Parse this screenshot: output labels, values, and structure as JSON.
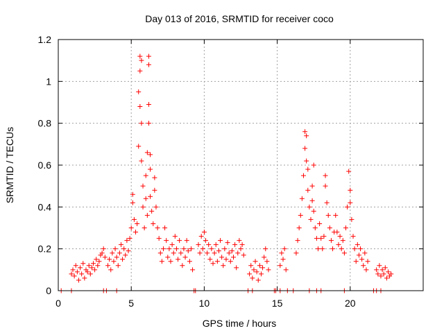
{
  "chart_data": {
    "type": "scatter",
    "title": "Day 013 of 2016, SRMTID for receiver coco",
    "xlabel": "GPS time / hours",
    "ylabel": "SRMTID / TECUs",
    "xlim": [
      0,
      25
    ],
    "ylim": [
      0,
      1.2
    ],
    "grid": true,
    "x_ticks": [
      0,
      5,
      10,
      15,
      20
    ],
    "x_tick_labels": [
      "0",
      "5",
      "10",
      "15",
      "20"
    ],
    "y_ticks": [
      0,
      0.2,
      0.4,
      0.6,
      0.8,
      1,
      1.2
    ],
    "y_tick_labels": [
      "0",
      "0.2",
      "0.4",
      "0.6",
      "0.8",
      "1",
      "1.2"
    ],
    "marker": "+",
    "colors": {
      "series": "#ff0000",
      "grid": "#a0a0a0",
      "axis": "#000000"
    },
    "series": [
      {
        "name": "SRMTID",
        "points": [
          [
            0.2,
            0
          ],
          [
            0.9,
            0
          ],
          [
            3.1,
            0
          ],
          [
            3.3,
            0
          ],
          [
            4.0,
            0
          ],
          [
            9.3,
            0
          ],
          [
            9.4,
            0
          ],
          [
            13.0,
            0
          ],
          [
            13.3,
            0
          ],
          [
            14.8,
            0
          ],
          [
            14.9,
            0
          ],
          [
            15.2,
            0
          ],
          [
            15.7,
            0
          ],
          [
            16.1,
            0
          ],
          [
            17.2,
            0
          ],
          [
            17.7,
            0
          ],
          [
            18.0,
            0
          ],
          [
            19.6,
            0
          ],
          [
            21.6,
            0
          ],
          [
            21.8,
            0
          ],
          [
            22.1,
            0
          ],
          [
            0.9,
            0.08
          ],
          [
            1.0,
            0.1
          ],
          [
            1.1,
            0.07
          ],
          [
            1.2,
            0.12
          ],
          [
            1.3,
            0.09
          ],
          [
            1.4,
            0.05
          ],
          [
            1.5,
            0.11
          ],
          [
            1.6,
            0.08
          ],
          [
            1.7,
            0.13
          ],
          [
            1.8,
            0.06
          ],
          [
            1.9,
            0.1
          ],
          [
            2.0,
            0.09
          ],
          [
            2.1,
            0.12
          ],
          [
            2.2,
            0.08
          ],
          [
            2.3,
            0.11
          ],
          [
            2.4,
            0.13
          ],
          [
            2.5,
            0.1
          ],
          [
            2.6,
            0.15
          ],
          [
            2.7,
            0.12
          ],
          [
            2.8,
            0.14
          ],
          [
            2.9,
            0.17
          ],
          [
            3.0,
            0.18
          ],
          [
            3.1,
            0.2
          ],
          [
            3.2,
            0.16
          ],
          [
            3.4,
            0.12
          ],
          [
            3.5,
            0.15
          ],
          [
            3.6,
            0.1
          ],
          [
            3.7,
            0.18
          ],
          [
            3.8,
            0.14
          ],
          [
            3.9,
            0.2
          ],
          [
            4.0,
            0.16
          ],
          [
            4.1,
            0.12
          ],
          [
            4.2,
            0.18
          ],
          [
            4.3,
            0.22
          ],
          [
            4.4,
            0.15
          ],
          [
            4.5,
            0.2
          ],
          [
            4.6,
            0.17
          ],
          [
            4.7,
            0.24
          ],
          [
            4.8,
            0.19
          ],
          [
            4.9,
            0.25
          ],
          [
            5.0,
            0.3
          ],
          [
            5.1,
            0.42
          ],
          [
            5.1,
            0.46
          ],
          [
            5.2,
            0.34
          ],
          [
            5.3,
            0.28
          ],
          [
            5.4,
            0.32
          ],
          [
            5.5,
            0.69
          ],
          [
            5.5,
            0.95
          ],
          [
            5.6,
            1.12
          ],
          [
            5.6,
            1.05
          ],
          [
            5.6,
            0.88
          ],
          [
            5.7,
            1.1
          ],
          [
            5.7,
            0.8
          ],
          [
            5.7,
            0.62
          ],
          [
            5.8,
            0.5
          ],
          [
            5.8,
            0.4
          ],
          [
            5.9,
            0.3
          ],
          [
            6.0,
            0.55
          ],
          [
            6.0,
            0.44
          ],
          [
            6.1,
            0.66
          ],
          [
            6.1,
            0.36
          ],
          [
            6.2,
            1.12
          ],
          [
            6.2,
            1.08
          ],
          [
            6.2,
            0.89
          ],
          [
            6.2,
            0.8
          ],
          [
            6.3,
            0.65
          ],
          [
            6.3,
            0.58
          ],
          [
            6.3,
            0.45
          ],
          [
            6.4,
            0.38
          ],
          [
            6.5,
            0.32
          ],
          [
            6.6,
            0.54
          ],
          [
            6.6,
            0.48
          ],
          [
            6.7,
            0.4
          ],
          [
            6.8,
            0.3
          ],
          [
            6.9,
            0.25
          ],
          [
            7.0,
            0.18
          ],
          [
            7.1,
            0.14
          ],
          [
            7.2,
            0.2
          ],
          [
            7.3,
            0.3
          ],
          [
            7.4,
            0.24
          ],
          [
            7.5,
            0.16
          ],
          [
            7.6,
            0.2
          ],
          [
            7.7,
            0.14
          ],
          [
            7.8,
            0.22
          ],
          [
            7.9,
            0.18
          ],
          [
            8.0,
            0.26
          ],
          [
            8.1,
            0.2
          ],
          [
            8.2,
            0.15
          ],
          [
            8.3,
            0.24
          ],
          [
            8.4,
            0.18
          ],
          [
            8.5,
            0.12
          ],
          [
            8.6,
            0.2
          ],
          [
            8.7,
            0.16
          ],
          [
            8.8,
            0.24
          ],
          [
            8.9,
            0.19
          ],
          [
            9.0,
            0.14
          ],
          [
            9.1,
            0.2
          ],
          [
            9.2,
            0.1
          ],
          [
            9.6,
            0.22
          ],
          [
            9.7,
            0.18
          ],
          [
            9.8,
            0.26
          ],
          [
            9.9,
            0.2
          ],
          [
            10.0,
            0.28
          ],
          [
            10.1,
            0.24
          ],
          [
            10.2,
            0.18
          ],
          [
            10.3,
            0.22
          ],
          [
            10.4,
            0.15
          ],
          [
            10.5,
            0.2
          ],
          [
            10.6,
            0.13
          ],
          [
            10.7,
            0.18
          ],
          [
            10.8,
            0.22
          ],
          [
            10.9,
            0.14
          ],
          [
            11.0,
            0.19
          ],
          [
            11.1,
            0.24
          ],
          [
            11.2,
            0.16
          ],
          [
            11.3,
            0.12
          ],
          [
            11.4,
            0.2
          ],
          [
            11.5,
            0.15
          ],
          [
            11.6,
            0.23
          ],
          [
            11.7,
            0.18
          ],
          [
            11.8,
            0.14
          ],
          [
            11.9,
            0.19
          ],
          [
            12.0,
            0.16
          ],
          [
            12.1,
            0.22
          ],
          [
            12.2,
            0.11
          ],
          [
            12.3,
            0.18
          ],
          [
            12.4,
            0.24
          ],
          [
            12.5,
            0.2
          ],
          [
            12.6,
            0.22
          ],
          [
            12.7,
            0.17
          ],
          [
            13.1,
            0.08
          ],
          [
            13.2,
            0.12
          ],
          [
            13.3,
            0.06
          ],
          [
            13.4,
            0.1
          ],
          [
            13.5,
            0.14
          ],
          [
            13.6,
            0.09
          ],
          [
            13.7,
            0.05
          ],
          [
            13.8,
            0.12
          ],
          [
            13.9,
            0.08
          ],
          [
            14.0,
            0.11
          ],
          [
            14.1,
            0.16
          ],
          [
            14.2,
            0.2
          ],
          [
            14.3,
            0.14
          ],
          [
            14.4,
            0.1
          ],
          [
            15.2,
            0.12
          ],
          [
            15.3,
            0.18
          ],
          [
            15.4,
            0.15
          ],
          [
            15.5,
            0.2
          ],
          [
            15.6,
            0.1
          ],
          [
            16.3,
            0.18
          ],
          [
            16.4,
            0.24
          ],
          [
            16.5,
            0.3
          ],
          [
            16.6,
            0.36
          ],
          [
            16.7,
            0.44
          ],
          [
            16.8,
            0.55
          ],
          [
            16.9,
            0.68
          ],
          [
            16.9,
            0.76
          ],
          [
            17.0,
            0.62
          ],
          [
            17.0,
            0.74
          ],
          [
            17.1,
            0.58
          ],
          [
            17.1,
            0.48
          ],
          [
            17.2,
            0.4
          ],
          [
            17.3,
            0.34
          ],
          [
            17.4,
            0.5
          ],
          [
            17.4,
            0.43
          ],
          [
            17.5,
            0.6
          ],
          [
            17.5,
            0.38
          ],
          [
            17.6,
            0.3
          ],
          [
            17.7,
            0.25
          ],
          [
            17.8,
            0.2
          ],
          [
            17.9,
            0.32
          ],
          [
            18.0,
            0.25
          ],
          [
            18.1,
            0.2
          ],
          [
            18.2,
            0.26
          ],
          [
            18.3,
            0.55
          ],
          [
            18.3,
            0.5
          ],
          [
            18.4,
            0.42
          ],
          [
            18.5,
            0.36
          ],
          [
            18.6,
            0.3
          ],
          [
            18.7,
            0.24
          ],
          [
            18.8,
            0.2
          ],
          [
            18.9,
            0.28
          ],
          [
            19.0,
            0.36
          ],
          [
            19.1,
            0.28
          ],
          [
            19.2,
            0.22
          ],
          [
            19.3,
            0.26
          ],
          [
            19.4,
            0.2
          ],
          [
            19.5,
            0.24
          ],
          [
            19.6,
            0.18
          ],
          [
            19.7,
            0.3
          ],
          [
            19.8,
            0.4
          ],
          [
            19.9,
            0.57
          ],
          [
            20.0,
            0.48
          ],
          [
            20.0,
            0.42
          ],
          [
            20.1,
            0.34
          ],
          [
            20.2,
            0.26
          ],
          [
            20.3,
            0.2
          ],
          [
            20.4,
            0.14
          ],
          [
            20.5,
            0.22
          ],
          [
            20.6,
            0.17
          ],
          [
            20.7,
            0.2
          ],
          [
            20.8,
            0.15
          ],
          [
            20.9,
            0.12
          ],
          [
            21.0,
            0.18
          ],
          [
            21.1,
            0.1
          ],
          [
            21.2,
            0.14
          ],
          [
            21.8,
            0.1
          ],
          [
            21.9,
            0.08
          ],
          [
            22.0,
            0.12
          ],
          [
            22.1,
            0.07
          ],
          [
            22.2,
            0.1
          ],
          [
            22.3,
            0.08
          ],
          [
            22.4,
            0.11
          ],
          [
            22.5,
            0.06
          ],
          [
            22.6,
            0.09
          ],
          [
            22.7,
            0.07
          ],
          [
            22.8,
            0.08
          ]
        ]
      }
    ]
  }
}
